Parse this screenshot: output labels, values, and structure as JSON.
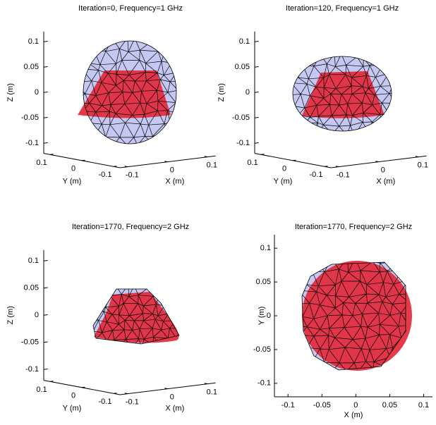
{
  "chart_data": [
    {
      "type": "mesh3d",
      "title": "Iteration=0, Frequency=1 GHz",
      "xlabel": "X (m)",
      "ylabel": "Y (m)",
      "zlabel": "Z (m)",
      "xlim": [
        -0.12,
        0.12
      ],
      "ylim": [
        -0.12,
        0.12
      ],
      "zlim": [
        -0.12,
        0.12
      ],
      "xticks": [
        -0.1,
        0,
        0.1
      ],
      "yticks": [
        -0.1,
        0,
        0.1
      ],
      "zticks": [
        -0.1,
        -0.05,
        0,
        0.05,
        0.1
      ]
    },
    {
      "type": "mesh3d",
      "title": "Iteration=120, Frequency=1 GHz",
      "xlabel": "X (m)",
      "ylabel": "Y (m)",
      "zlabel": "Z (m)",
      "xlim": [
        -0.12,
        0.12
      ],
      "ylim": [
        -0.12,
        0.12
      ],
      "zlim": [
        -0.12,
        0.12
      ],
      "xticks": [
        -0.1,
        0,
        0.1
      ],
      "yticks": [
        -0.1,
        0,
        0.1
      ],
      "zticks": [
        -0.1,
        -0.05,
        0,
        0.05,
        0.1
      ]
    },
    {
      "type": "mesh3d",
      "title": "Iteration=1770, Frequency=2 GHz",
      "xlabel": "X (m)",
      "ylabel": "Y (m)",
      "zlabel": "Z (m)",
      "xlim": [
        -0.12,
        0.12
      ],
      "ylim": [
        -0.12,
        0.12
      ],
      "zlim": [
        -0.12,
        0.12
      ],
      "xticks": [
        -0.1,
        0,
        0.1
      ],
      "yticks": [
        -0.1,
        0,
        0.1
      ],
      "zticks": [
        -0.1,
        -0.05,
        0,
        0.05,
        0.1
      ]
    },
    {
      "type": "mesh2d",
      "title": "Iteration=1770, Frequency=2 GHz",
      "xlabel": "X (m)",
      "ylabel": "Y (m)",
      "xlim": [
        -0.12,
        0.113
      ],
      "ylim": [
        -0.12,
        0.12
      ],
      "xticks": [
        -0.1,
        -0.05,
        0,
        0.05,
        0.1
      ],
      "yticks": [
        -0.1,
        -0.05,
        0,
        0.05,
        0.1
      ]
    }
  ]
}
